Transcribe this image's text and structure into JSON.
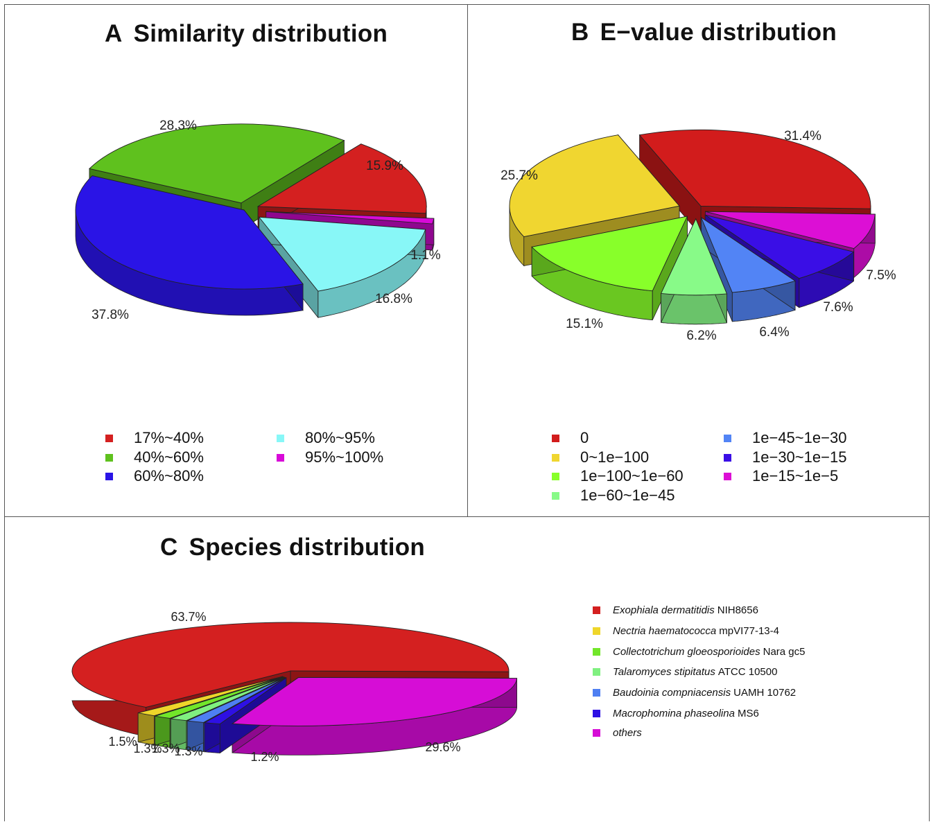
{
  "chart_data": [
    {
      "type": "pie",
      "letter": "A",
      "title": "Similarity distribution",
      "categories": [
        "17%~40%",
        "40%~60%",
        "60%~80%",
        "80%~95%",
        "95%~100%"
      ],
      "values": [
        15.9,
        28.3,
        37.8,
        16.8,
        1.1
      ],
      "labels": [
        "15.9%",
        "28.3%",
        "37.8%",
        "16.8%",
        "1.1%"
      ],
      "colors": [
        "#d42020",
        "#5fc11e",
        "#2a14e6",
        "#88f7f7",
        "#d80ad8"
      ],
      "legend_placement": "bottom"
    },
    {
      "type": "pie",
      "letter": "B",
      "title": "E-value distribution",
      "categories": [
        "0",
        "0~1e-100",
        "1e-100~1e-60",
        "1e-60~1e-45",
        "1e-45~1e-30",
        "1e-30~1e-15",
        "1e-15~1e-5"
      ],
      "legend_labels": [
        "0",
        "0~1e−100",
        "1e−100~1e−60",
        "1e−60~1e−45",
        "1e−45~1e−30",
        "1e−30~1e−15",
        "1e−15~1e−5"
      ],
      "values": [
        31.4,
        25.7,
        15.1,
        6.2,
        6.4,
        7.6,
        7.5
      ],
      "labels": [
        "31.4%",
        "25.7%",
        "15.1%",
        "6.2%",
        "6.4%",
        "7.6%",
        "7.5%"
      ],
      "colors": [
        "#d21c1c",
        "#f0d630",
        "#88ff2a",
        "#88fa88",
        "#5284f5",
        "#3a0ee6",
        "#dc0fd5"
      ],
      "legend_placement": "bottom"
    },
    {
      "type": "pie",
      "letter": "C",
      "title": "Species distribution",
      "categories": [
        {
          "italic": "Exophiala dermatitidis",
          "plain": "NIH8656"
        },
        {
          "italic": "Nectria haematococca",
          "plain": "mpVI77-13-4"
        },
        {
          "italic": "Collectotrichum gloeosporioides",
          "plain": "Nara gc5"
        },
        {
          "italic": "Talaromyces stipitatus",
          "plain": "ATCC 10500"
        },
        {
          "italic": "Baudoinia compniacensis",
          "plain": "UAMH 10762"
        },
        {
          "italic": "Macrophomina phaseolina",
          "plain": "MS6"
        },
        {
          "italic": "others",
          "plain": ""
        }
      ],
      "values": [
        63.7,
        1.5,
        1.3,
        1.3,
        1.3,
        1.2,
        29.6
      ],
      "labels": [
        "63.7%",
        "1.5%",
        "1.3%",
        "1.3%",
        "1.3%",
        "1.2%",
        "29.6%"
      ],
      "colors": [
        "#d42020",
        "#efd62a",
        "#72e62a",
        "#80f080",
        "#4e7ff2",
        "#2e10e4",
        "#d60dd6"
      ],
      "legend_placement": "right"
    }
  ]
}
